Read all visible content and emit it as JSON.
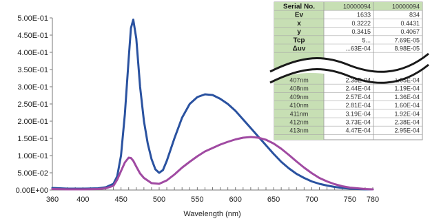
{
  "chart_data": {
    "type": "line",
    "xlabel": "Wavelength (nm)",
    "ylabel": "",
    "xlim": [
      360,
      780
    ],
    "ylim": [
      0,
      0.5
    ],
    "x_ticks": [
      360,
      400,
      450,
      500,
      550,
      600,
      650,
      700,
      750,
      780
    ],
    "y_ticks": [
      "0.00E+00",
      "5.00E-02",
      "1.00E-01",
      "1.50E-01",
      "2.00E-01",
      "2.50E-01",
      "3.00E-01",
      "3.50E-01",
      "4.00E-01",
      "4.50E-01",
      "5.00E-01"
    ],
    "grid": false,
    "series": [
      {
        "color": "#2a52a0",
        "x": [
          360,
          380,
          400,
          420,
          430,
          440,
          445,
          450,
          455,
          460,
          463,
          466,
          470,
          475,
          480,
          485,
          490,
          495,
          500,
          505,
          510,
          520,
          530,
          540,
          550,
          560,
          570,
          580,
          590,
          600,
          610,
          620,
          630,
          640,
          650,
          660,
          670,
          680,
          690,
          700,
          710,
          720,
          730,
          740,
          750,
          760,
          770,
          780
        ],
        "y": [
          0.006,
          0.004,
          0.004,
          0.005,
          0.008,
          0.018,
          0.04,
          0.1,
          0.22,
          0.38,
          0.47,
          0.495,
          0.44,
          0.3,
          0.2,
          0.135,
          0.09,
          0.06,
          0.05,
          0.058,
          0.085,
          0.15,
          0.21,
          0.25,
          0.27,
          0.278,
          0.276,
          0.265,
          0.25,
          0.23,
          0.205,
          0.18,
          0.155,
          0.13,
          0.105,
          0.082,
          0.063,
          0.047,
          0.035,
          0.025,
          0.018,
          0.013,
          0.009,
          0.006,
          0.004,
          0.003,
          0.002,
          0.002
        ]
      },
      {
        "color": "#a04aa2",
        "x": [
          360,
          380,
          400,
          420,
          430,
          440,
          445,
          450,
          455,
          460,
          463,
          466,
          470,
          475,
          480,
          490,
          500,
          510,
          520,
          530,
          540,
          550,
          560,
          570,
          580,
          590,
          600,
          610,
          620,
          630,
          640,
          650,
          660,
          670,
          680,
          690,
          700,
          710,
          720,
          730,
          740,
          750,
          760,
          770,
          780
        ],
        "y": [
          0.003,
          0.002,
          0.002,
          0.003,
          0.005,
          0.012,
          0.03,
          0.055,
          0.08,
          0.094,
          0.093,
          0.085,
          0.068,
          0.048,
          0.035,
          0.02,
          0.018,
          0.028,
          0.045,
          0.065,
          0.082,
          0.098,
          0.112,
          0.122,
          0.132,
          0.14,
          0.147,
          0.152,
          0.154,
          0.152,
          0.146,
          0.135,
          0.12,
          0.102,
          0.083,
          0.065,
          0.049,
          0.035,
          0.025,
          0.017,
          0.011,
          0.007,
          0.005,
          0.003,
          0.002
        ]
      }
    ]
  },
  "table": {
    "header": [
      "Serial No.",
      "10000094",
      "10000094"
    ],
    "upper_rows": [
      [
        "Ev",
        "1633",
        "834"
      ],
      [
        "x",
        "0.3222",
        "0.4431"
      ],
      [
        "y",
        "0.3415",
        "0.4067"
      ]
    ],
    "mid_rows": [
      [
        "Tcp",
        "5...",
        "7.69E-05"
      ],
      [
        "Δuv",
        "...63E-04",
        "8.98E-05"
      ]
    ],
    "lower_rows": [
      [
        "407nm",
        "2.38E-04",
        "1.05E-04"
      ],
      [
        "408nm",
        "2.44E-04",
        "1.19E-04"
      ],
      [
        "409nm",
        "2.57E-04",
        "1.36E-04"
      ],
      [
        "410nm",
        "2.81E-04",
        "1.60E-04"
      ],
      [
        "411nm",
        "3.19E-04",
        "1.92E-04"
      ],
      [
        "412nm",
        "3.73E-04",
        "2.38E-04"
      ],
      [
        "413nm",
        "4.47E-04",
        "2.95E-04"
      ]
    ]
  }
}
